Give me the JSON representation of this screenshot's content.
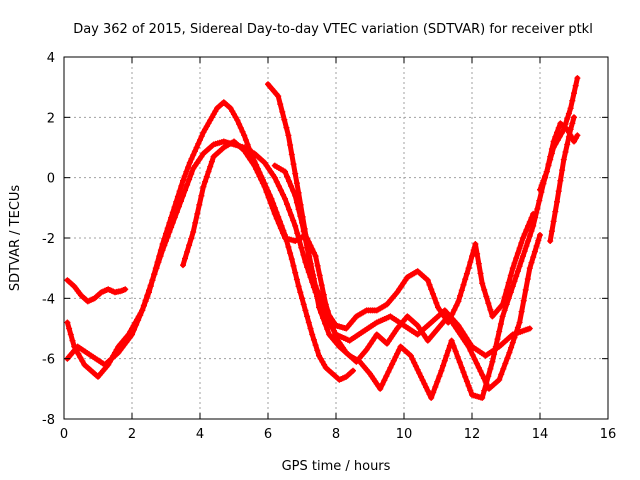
{
  "chart_data": {
    "type": "line",
    "title": "Day 362 of 2015, Sidereal Day-to-day VTEC variation (SDTVAR) for receiver ptkl",
    "xlabel": "GPS time / hours",
    "ylabel": "SDTVAR / TECUs",
    "xlim": [
      0,
      16
    ],
    "ylim": [
      -8,
      4
    ],
    "xticks": [
      "0",
      "2",
      "4",
      "6",
      "8",
      "10",
      "12",
      "14",
      "16"
    ],
    "yticks": [
      "-8",
      "-6",
      "-4",
      "-2",
      "0",
      "2",
      "4"
    ],
    "grid": true,
    "marker": "+",
    "color": "#ff0000",
    "series": [
      {
        "name": "track-1",
        "x": [
          0.1,
          0.3,
          0.6,
          0.9,
          1.0,
          1.3,
          1.6,
          1.9,
          2.1,
          2.3,
          2.5,
          2.7,
          2.9,
          3.1,
          3.3,
          3.5,
          3.7,
          3.9,
          4.1,
          4.3,
          4.5,
          4.7,
          4.9,
          5.1,
          5.3,
          5.5,
          5.7,
          5.9,
          6.1,
          6.3,
          6.5,
          6.7,
          6.9,
          7.1,
          7.3,
          7.5,
          7.7,
          7.9,
          8.1,
          8.3,
          8.5
        ],
        "y": [
          -4.8,
          -5.6,
          -6.2,
          -6.5,
          -6.6,
          -6.2,
          -5.6,
          -5.2,
          -4.8,
          -4.4,
          -3.8,
          -3.0,
          -2.2,
          -1.5,
          -0.8,
          -0.1,
          0.5,
          1.0,
          1.5,
          1.9,
          2.3,
          2.5,
          2.3,
          1.9,
          1.4,
          0.8,
          0.3,
          -0.2,
          -0.7,
          -1.3,
          -1.9,
          -2.7,
          -3.6,
          -4.4,
          -5.2,
          -5.9,
          -6.3,
          -6.5,
          -6.7,
          -6.6,
          -6.4
        ]
      },
      {
        "name": "track-2",
        "x": [
          0.1,
          0.3,
          0.5,
          0.7,
          0.9,
          1.1,
          1.3,
          1.5,
          1.7,
          1.8
        ],
        "y": [
          -3.4,
          -3.6,
          -3.9,
          -4.1,
          -4.0,
          -3.8,
          -3.7,
          -3.8,
          -3.75,
          -3.7
        ]
      },
      {
        "name": "track-3",
        "x": [
          0.1,
          0.4,
          0.8,
          1.2,
          1.6,
          2.0,
          2.3,
          2.6,
          2.9,
          3.2,
          3.5,
          3.8,
          4.1,
          4.4,
          4.7,
          5.0,
          5.3,
          5.6,
          5.9,
          6.2,
          6.5,
          6.8,
          7.1,
          7.4,
          7.7,
          8.0,
          8.4,
          8.8,
          9.2,
          9.6,
          10.0,
          10.4,
          10.8,
          11.2,
          11.6,
          12.0,
          12.4,
          12.8,
          13.2,
          13.7
        ],
        "y": [
          -6.0,
          -5.6,
          -5.9,
          -6.2,
          -5.8,
          -5.2,
          -4.4,
          -3.4,
          -2.4,
          -1.5,
          -0.6,
          0.3,
          0.8,
          1.1,
          1.2,
          1.1,
          1.0,
          0.8,
          0.5,
          0.0,
          -0.7,
          -1.6,
          -2.8,
          -3.8,
          -4.6,
          -5.2,
          -5.4,
          -5.1,
          -4.8,
          -4.6,
          -4.9,
          -5.2,
          -4.8,
          -4.4,
          -4.9,
          -5.6,
          -5.9,
          -5.6,
          -5.2,
          -5.0
        ]
      },
      {
        "name": "track-4",
        "x": [
          6.0,
          6.3,
          6.6,
          6.9,
          7.2,
          7.5,
          7.8,
          8.1,
          8.4,
          8.7,
          9.0,
          9.3,
          9.6,
          9.9,
          10.2,
          10.5,
          10.8,
          11.1,
          11.4,
          11.7,
          12.0,
          12.3,
          12.6,
          12.9,
          13.2,
          13.5,
          13.8,
          14.1,
          14.4,
          14.7,
          14.9,
          15.1
        ],
        "y": [
          3.1,
          2.7,
          1.4,
          -0.5,
          -2.5,
          -4.3,
          -5.2,
          -5.6,
          -5.9,
          -6.1,
          -6.5,
          -7.0,
          -6.3,
          -5.6,
          -5.9,
          -6.6,
          -7.3,
          -6.4,
          -5.4,
          -6.3,
          -7.2,
          -7.3,
          -6.1,
          -4.6,
          -3.6,
          -2.6,
          -1.6,
          -0.2,
          1.0,
          1.6,
          2.3,
          3.3
        ]
      },
      {
        "name": "track-5",
        "x": [
          6.2,
          6.5,
          6.8,
          7.0,
          7.2,
          7.4,
          7.7,
          8.0,
          8.3,
          8.6,
          8.9,
          9.2,
          9.5,
          9.8,
          10.1,
          10.4,
          10.7,
          11.0,
          11.3,
          11.6,
          11.9,
          12.1,
          12.3,
          12.6,
          12.9,
          13.2,
          13.5,
          13.8
        ],
        "y": [
          0.4,
          0.2,
          -0.6,
          -1.5,
          -2.6,
          -3.6,
          -4.4,
          -4.9,
          -5.0,
          -4.6,
          -4.4,
          -4.4,
          -4.2,
          -3.8,
          -3.3,
          -3.1,
          -3.4,
          -4.3,
          -4.8,
          -4.1,
          -3.0,
          -2.2,
          -3.5,
          -4.6,
          -4.2,
          -3.0,
          -2.0,
          -1.2
        ]
      },
      {
        "name": "track-6",
        "x": [
          3.5,
          3.8,
          4.1,
          4.4,
          4.7,
          5.0,
          5.3,
          5.6,
          5.9,
          6.2,
          6.5,
          6.8,
          7.1,
          7.4,
          7.7,
          8.0,
          8.3,
          8.6,
          8.9,
          9.2,
          9.5,
          9.8,
          10.1,
          10.4,
          10.7,
          11.0,
          11.3,
          11.6,
          11.9,
          12.2,
          12.5,
          12.8,
          13.1,
          13.4,
          13.7,
          14.0
        ],
        "y": [
          -2.9,
          -1.8,
          -0.3,
          0.7,
          1.0,
          1.2,
          0.9,
          0.4,
          -0.3,
          -1.2,
          -2.0,
          -2.1,
          -1.9,
          -2.6,
          -4.2,
          -5.3,
          -5.8,
          -6.1,
          -5.7,
          -5.2,
          -5.5,
          -5.0,
          -4.6,
          -4.9,
          -5.4,
          -5.0,
          -4.6,
          -5.1,
          -5.6,
          -6.3,
          -7.0,
          -6.7,
          -5.8,
          -4.8,
          -3.0,
          -1.9
        ]
      },
      {
        "name": "track-7",
        "x": [
          14.0,
          14.2,
          14.4,
          14.6,
          14.8,
          15.0,
          15.1
        ],
        "y": [
          -0.4,
          0.2,
          1.2,
          1.8,
          1.6,
          1.2,
          1.4
        ]
      },
      {
        "name": "track-8",
        "x": [
          14.3,
          14.5,
          14.7,
          14.9,
          15.0
        ],
        "y": [
          -2.1,
          -0.8,
          0.6,
          1.6,
          2.0
        ]
      }
    ]
  }
}
